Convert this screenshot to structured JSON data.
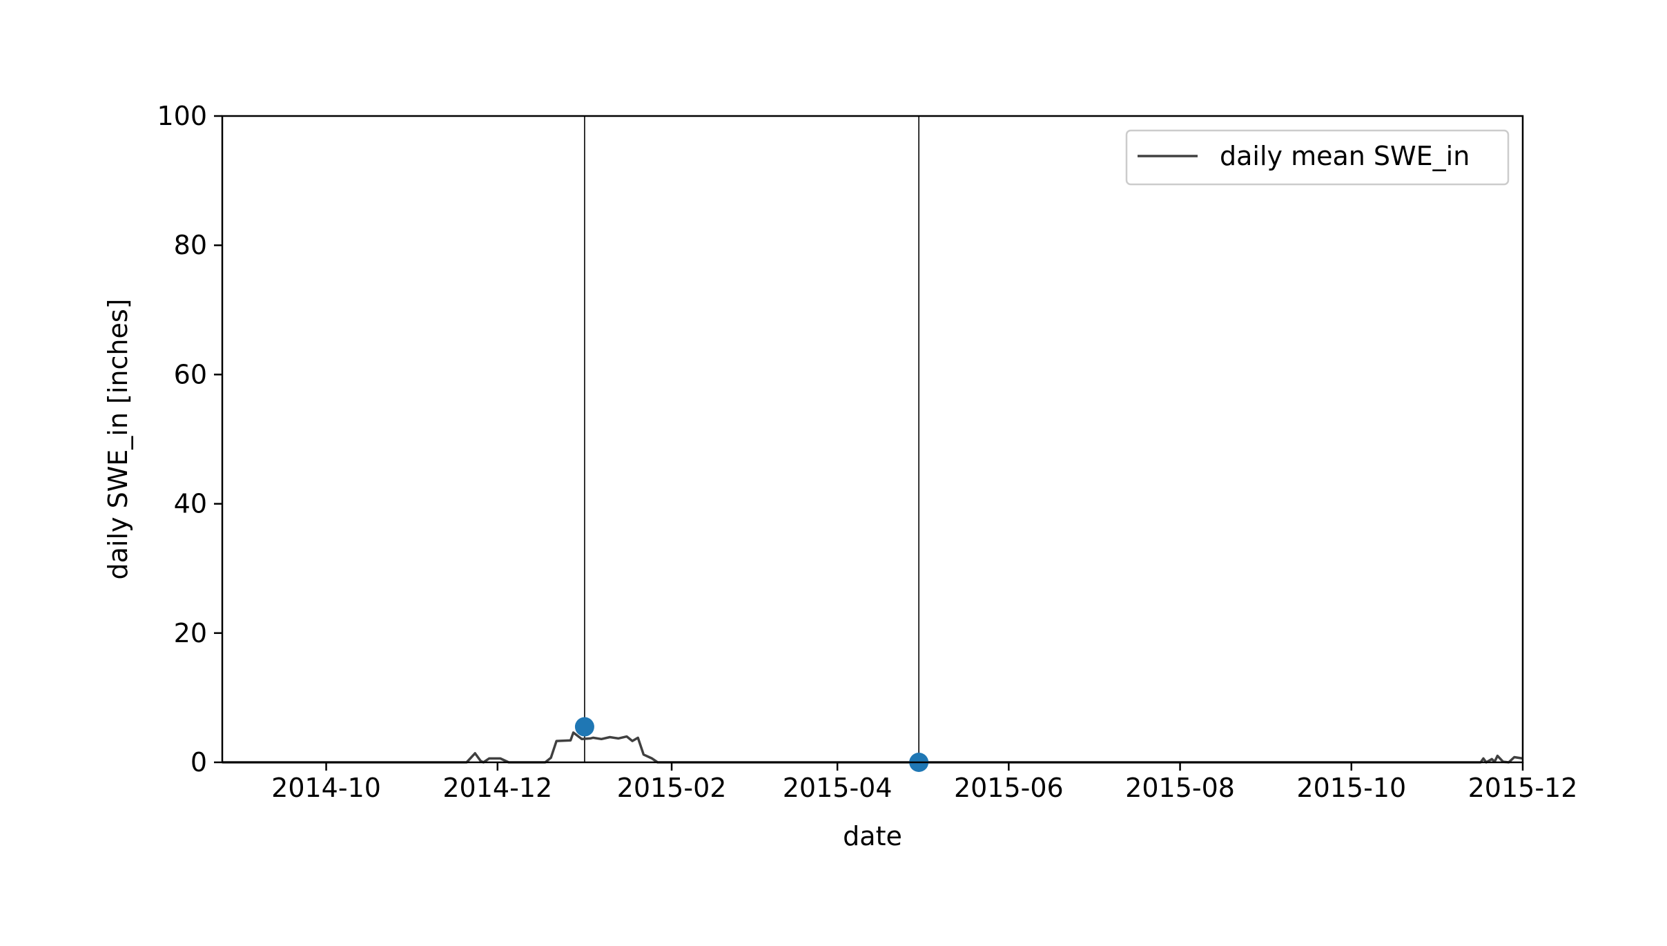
{
  "chart_data": {
    "type": "line",
    "title": "",
    "xlabel": "date",
    "ylabel": "daily SWE_in [inches]",
    "xlim": [
      "2014-08-25",
      "2015-12-01"
    ],
    "ylim": [
      0,
      100
    ],
    "x_ticks": [
      "2014-10",
      "2014-12",
      "2015-02",
      "2015-04",
      "2015-06",
      "2015-08",
      "2015-10",
      "2015-12"
    ],
    "y_ticks": [
      "0",
      "20",
      "40",
      "60",
      "80",
      "100"
    ],
    "grid": false,
    "legend": {
      "placement": "top-right",
      "entries": [
        "daily mean SWE_in"
      ]
    },
    "series": [
      {
        "name": "daily mean SWE_in",
        "kind": "line",
        "color": "#404040",
        "x": [
          "2014-08-25",
          "2014-11-20",
          "2014-11-23",
          "2014-11-25",
          "2014-11-26",
          "2014-11-28",
          "2014-12-02",
          "2014-12-05",
          "2014-12-06",
          "2014-12-18",
          "2014-12-20",
          "2014-12-22",
          "2014-12-27",
          "2014-12-28",
          "2014-12-31",
          "2015-01-03",
          "2015-01-04",
          "2015-01-07",
          "2015-01-10",
          "2015-01-13",
          "2015-01-16",
          "2015-01-18",
          "2015-01-20",
          "2015-01-22",
          "2015-01-24",
          "2015-01-25",
          "2015-01-27",
          "2015-01-29",
          "2015-01-30",
          "2015-04-30",
          "2015-09-20",
          "2015-11-16",
          "2015-11-17",
          "2015-11-18",
          "2015-11-20",
          "2015-11-21",
          "2015-11-22",
          "2015-11-24",
          "2015-11-26",
          "2015-11-28",
          "2015-12-01"
        ],
        "values": [
          0,
          0,
          1.4,
          0.2,
          0,
          0.6,
          0.6,
          0,
          0,
          0,
          0.7,
          3.3,
          3.4,
          4.6,
          3.6,
          3.7,
          3.8,
          3.6,
          3.9,
          3.7,
          4.0,
          3.3,
          3.8,
          1.2,
          0.8,
          0.6,
          0,
          0,
          0,
          0,
          0,
          0,
          0.6,
          0,
          0.5,
          0.1,
          1.0,
          0.1,
          0,
          0.8,
          0.6
        ]
      },
      {
        "name": "",
        "kind": "scatter",
        "color": "#1f77b4",
        "x": [
          "2015-01-01",
          "2015-04-30"
        ],
        "values": [
          5.5,
          0
        ]
      }
    ],
    "vlines": [
      "2015-01-01",
      "2015-04-30"
    ]
  }
}
